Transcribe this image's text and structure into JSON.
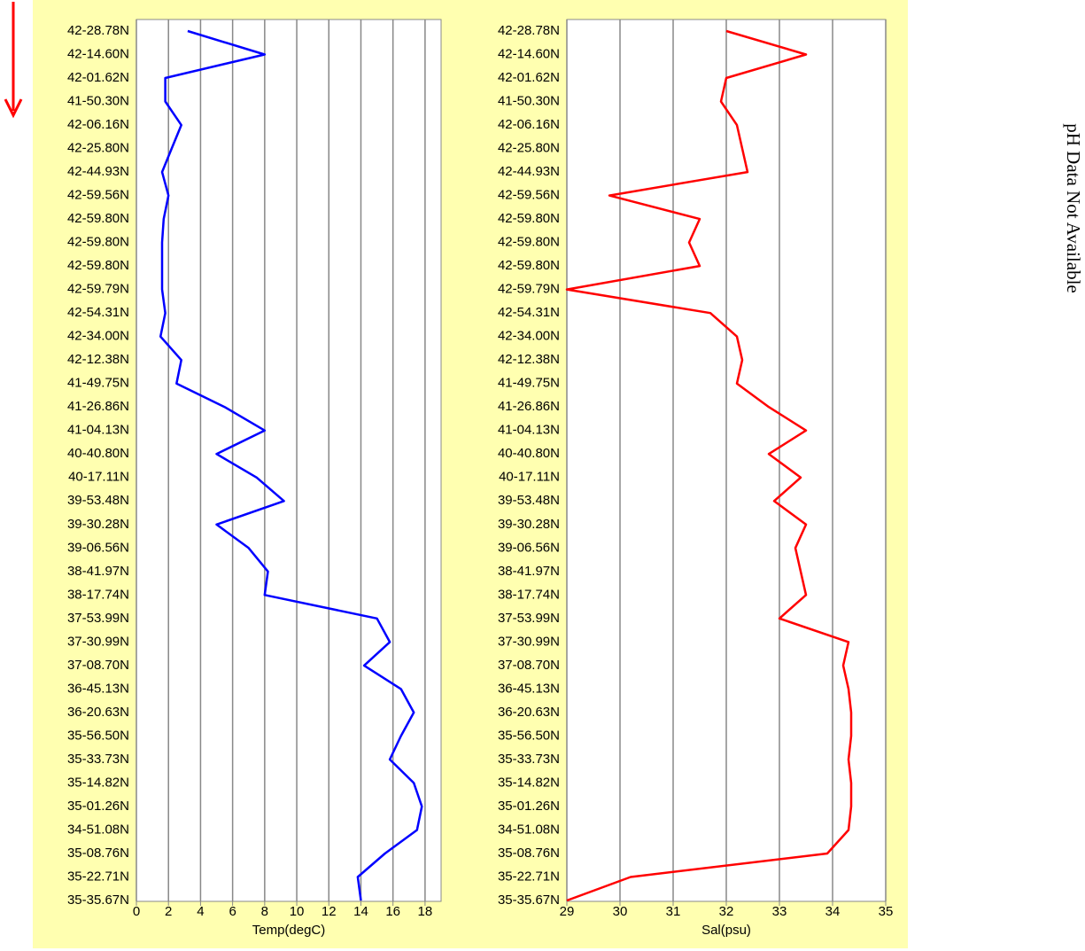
{
  "chart_data": [
    {
      "type": "line",
      "orientation": "horizontal",
      "xlabel": "Temp(degC)",
      "color": "#0000ff",
      "categories": [
        "42-28.78N",
        "42-14.60N",
        "42-01.62N",
        "41-50.30N",
        "42-06.16N",
        "42-25.80N",
        "42-44.93N",
        "42-59.56N",
        "42-59.80N",
        "42-59.80N",
        "42-59.80N",
        "42-59.79N",
        "42-54.31N",
        "42-34.00N",
        "42-12.38N",
        "41-49.75N",
        "41-26.86N",
        "41-04.13N",
        "40-40.80N",
        "40-17.11N",
        "39-53.48N",
        "39-30.28N",
        "39-06.56N",
        "38-41.97N",
        "38-17.74N",
        "37-53.99N",
        "37-30.99N",
        "37-08.70N",
        "36-45.13N",
        "36-20.63N",
        "35-56.50N",
        "35-33.73N",
        "35-14.82N",
        "35-01.26N",
        "34-51.08N",
        "35-08.76N",
        "35-22.71N",
        "35-35.67N"
      ],
      "values": [
        3.2,
        8.0,
        1.8,
        1.8,
        2.8,
        2.2,
        1.6,
        2.0,
        1.7,
        1.6,
        1.6,
        1.6,
        1.8,
        1.5,
        2.8,
        2.5,
        5.5,
        8.0,
        5.0,
        7.5,
        9.2,
        5.0,
        7.0,
        8.2,
        8.0,
        15.0,
        15.8,
        14.2,
        16.5,
        17.3,
        16.5,
        15.8,
        17.3,
        17.8,
        17.5,
        15.5,
        13.8,
        14.0
      ],
      "xlim": [
        0,
        19
      ],
      "xticks": [
        0,
        2,
        4,
        6,
        8,
        10,
        12,
        14,
        16,
        18
      ],
      "grid": true
    },
    {
      "type": "line",
      "orientation": "horizontal",
      "xlabel": "Sal(psu)",
      "color": "#ff0000",
      "categories": [
        "42-28.78N",
        "42-14.60N",
        "42-01.62N",
        "41-50.30N",
        "42-06.16N",
        "42-25.80N",
        "42-44.93N",
        "42-59.56N",
        "42-59.80N",
        "42-59.80N",
        "42-59.80N",
        "42-59.79N",
        "42-54.31N",
        "42-34.00N",
        "42-12.38N",
        "41-49.75N",
        "41-26.86N",
        "41-04.13N",
        "40-40.80N",
        "40-17.11N",
        "39-53.48N",
        "39-30.28N",
        "39-06.56N",
        "38-41.97N",
        "38-17.74N",
        "37-53.99N",
        "37-30.99N",
        "37-08.70N",
        "36-45.13N",
        "36-20.63N",
        "35-56.50N",
        "35-33.73N",
        "35-14.82N",
        "35-01.26N",
        "34-51.08N",
        "35-08.76N",
        "35-22.71N",
        "35-35.67N"
      ],
      "values": [
        32.0,
        33.5,
        32.0,
        31.9,
        32.2,
        32.3,
        32.4,
        29.8,
        31.5,
        31.3,
        31.5,
        29.0,
        31.7,
        32.2,
        32.3,
        32.2,
        32.8,
        33.5,
        32.8,
        33.4,
        32.9,
        33.5,
        33.3,
        33.4,
        33.5,
        33.0,
        34.3,
        34.2,
        34.3,
        34.35,
        34.35,
        34.3,
        34.35,
        34.35,
        34.3,
        33.9,
        30.2,
        29.0
      ],
      "xlim": [
        29,
        35
      ],
      "xticks": [
        29,
        30,
        31,
        32,
        33,
        34,
        35
      ],
      "grid": true
    }
  ],
  "note": "pH Data Not Available"
}
